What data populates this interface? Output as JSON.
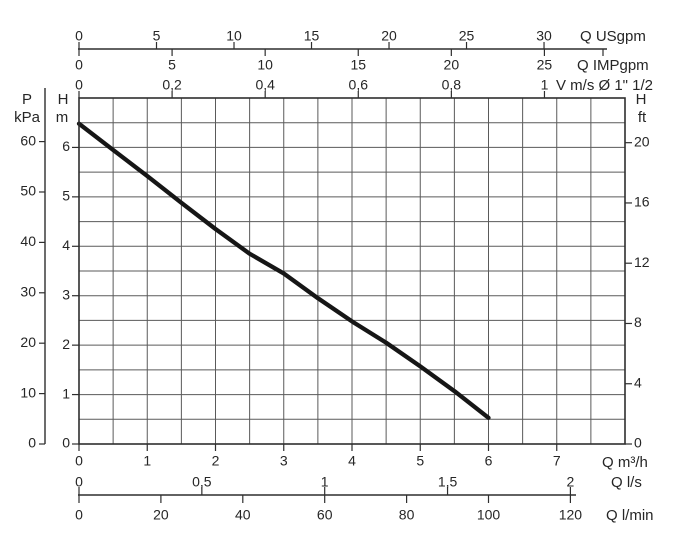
{
  "chart_data": {
    "type": "line",
    "title": "",
    "plot": {
      "x_unit": "m³/h",
      "x_range": [
        0,
        8
      ],
      "y_unit": "m",
      "y_range": [
        0,
        7
      ],
      "grid": true,
      "grid_step_x": 0.5,
      "grid_step_y": 0.5
    },
    "series": [
      {
        "name": "pump-head-curve",
        "x": [
          0,
          0.5,
          1,
          1.5,
          2,
          2.5,
          3,
          3.5,
          4,
          4.5,
          5,
          5.5,
          6
        ],
        "y": [
          6.48,
          5.95,
          5.42,
          4.88,
          4.35,
          3.85,
          3.45,
          2.95,
          2.48,
          2.05,
          1.57,
          1.07,
          0.53
        ]
      }
    ],
    "axes": {
      "usgpm": {
        "label": "Q USgpm",
        "unit_to_m3h": 0.22712,
        "ticks": [
          0,
          5,
          10,
          15,
          20,
          25,
          30
        ],
        "tick_labels": [
          "0",
          "5",
          "10",
          "15",
          "20",
          "25",
          "30"
        ]
      },
      "impgpm": {
        "label": "Q IMPgpm",
        "unit_to_m3h": 0.27277,
        "ticks": [
          0,
          5,
          10,
          15,
          20,
          25
        ],
        "tick_labels": [
          "0",
          "5",
          "10",
          "15",
          "20",
          "25"
        ]
      },
      "velocity": {
        "label": "V m/s Ø 1\" 1/2",
        "unit_to_m3h": 6.82,
        "ticks": [
          0,
          0.2,
          0.4,
          0.6,
          0.8,
          1
        ],
        "tick_labels": [
          "0",
          "0,2",
          "0,4",
          "0,6",
          "0,8",
          "1"
        ]
      },
      "m3h": {
        "label": "Q m³/h",
        "unit_to_m3h": 1,
        "ticks": [
          0,
          1,
          2,
          3,
          4,
          5,
          6,
          7
        ],
        "tick_labels": [
          "0",
          "1",
          "2",
          "3",
          "4",
          "5",
          "6",
          "7"
        ]
      },
      "ls": {
        "label": "Q l/s",
        "unit_to_m3h": 3.6,
        "ticks": [
          0,
          0.5,
          1,
          1.5,
          2
        ],
        "tick_labels": [
          "0",
          "0,5",
          "1",
          "1,5",
          "2"
        ]
      },
      "lmin": {
        "label": "Q l/min",
        "unit_to_m3h": 0.06,
        "ticks": [
          0,
          20,
          40,
          60,
          80,
          100,
          120
        ],
        "tick_labels": [
          "0",
          "20",
          "40",
          "60",
          "80",
          "100",
          "120"
        ]
      },
      "head_m": {
        "label": [
          "H",
          "m"
        ],
        "unit_to_m": 1,
        "ticks": [
          0,
          1,
          2,
          3,
          4,
          5,
          6
        ],
        "tick_labels": [
          "0",
          "1",
          "2",
          "3",
          "4",
          "5",
          "6"
        ]
      },
      "pressure_kpa": {
        "label": [
          "P",
          "kPa"
        ],
        "unit_to_m": 0.10197,
        "ticks": [
          0,
          10,
          20,
          30,
          40,
          50,
          60
        ],
        "tick_labels": [
          "0",
          "10",
          "20",
          "30",
          "40",
          "50",
          "60"
        ]
      },
      "head_ft": {
        "label": [
          "H",
          "ft"
        ],
        "unit_to_m": 0.3048,
        "ticks": [
          0,
          4,
          8,
          12,
          16,
          20
        ],
        "tick_labels": [
          "0",
          "4",
          "8",
          "12",
          "16",
          "20"
        ]
      }
    },
    "colors": {
      "curve": "#161616",
      "grid": "#5a5a5a",
      "frame": "#2e2e2e",
      "axis": "#2e2e2e",
      "text": "#262626"
    }
  }
}
